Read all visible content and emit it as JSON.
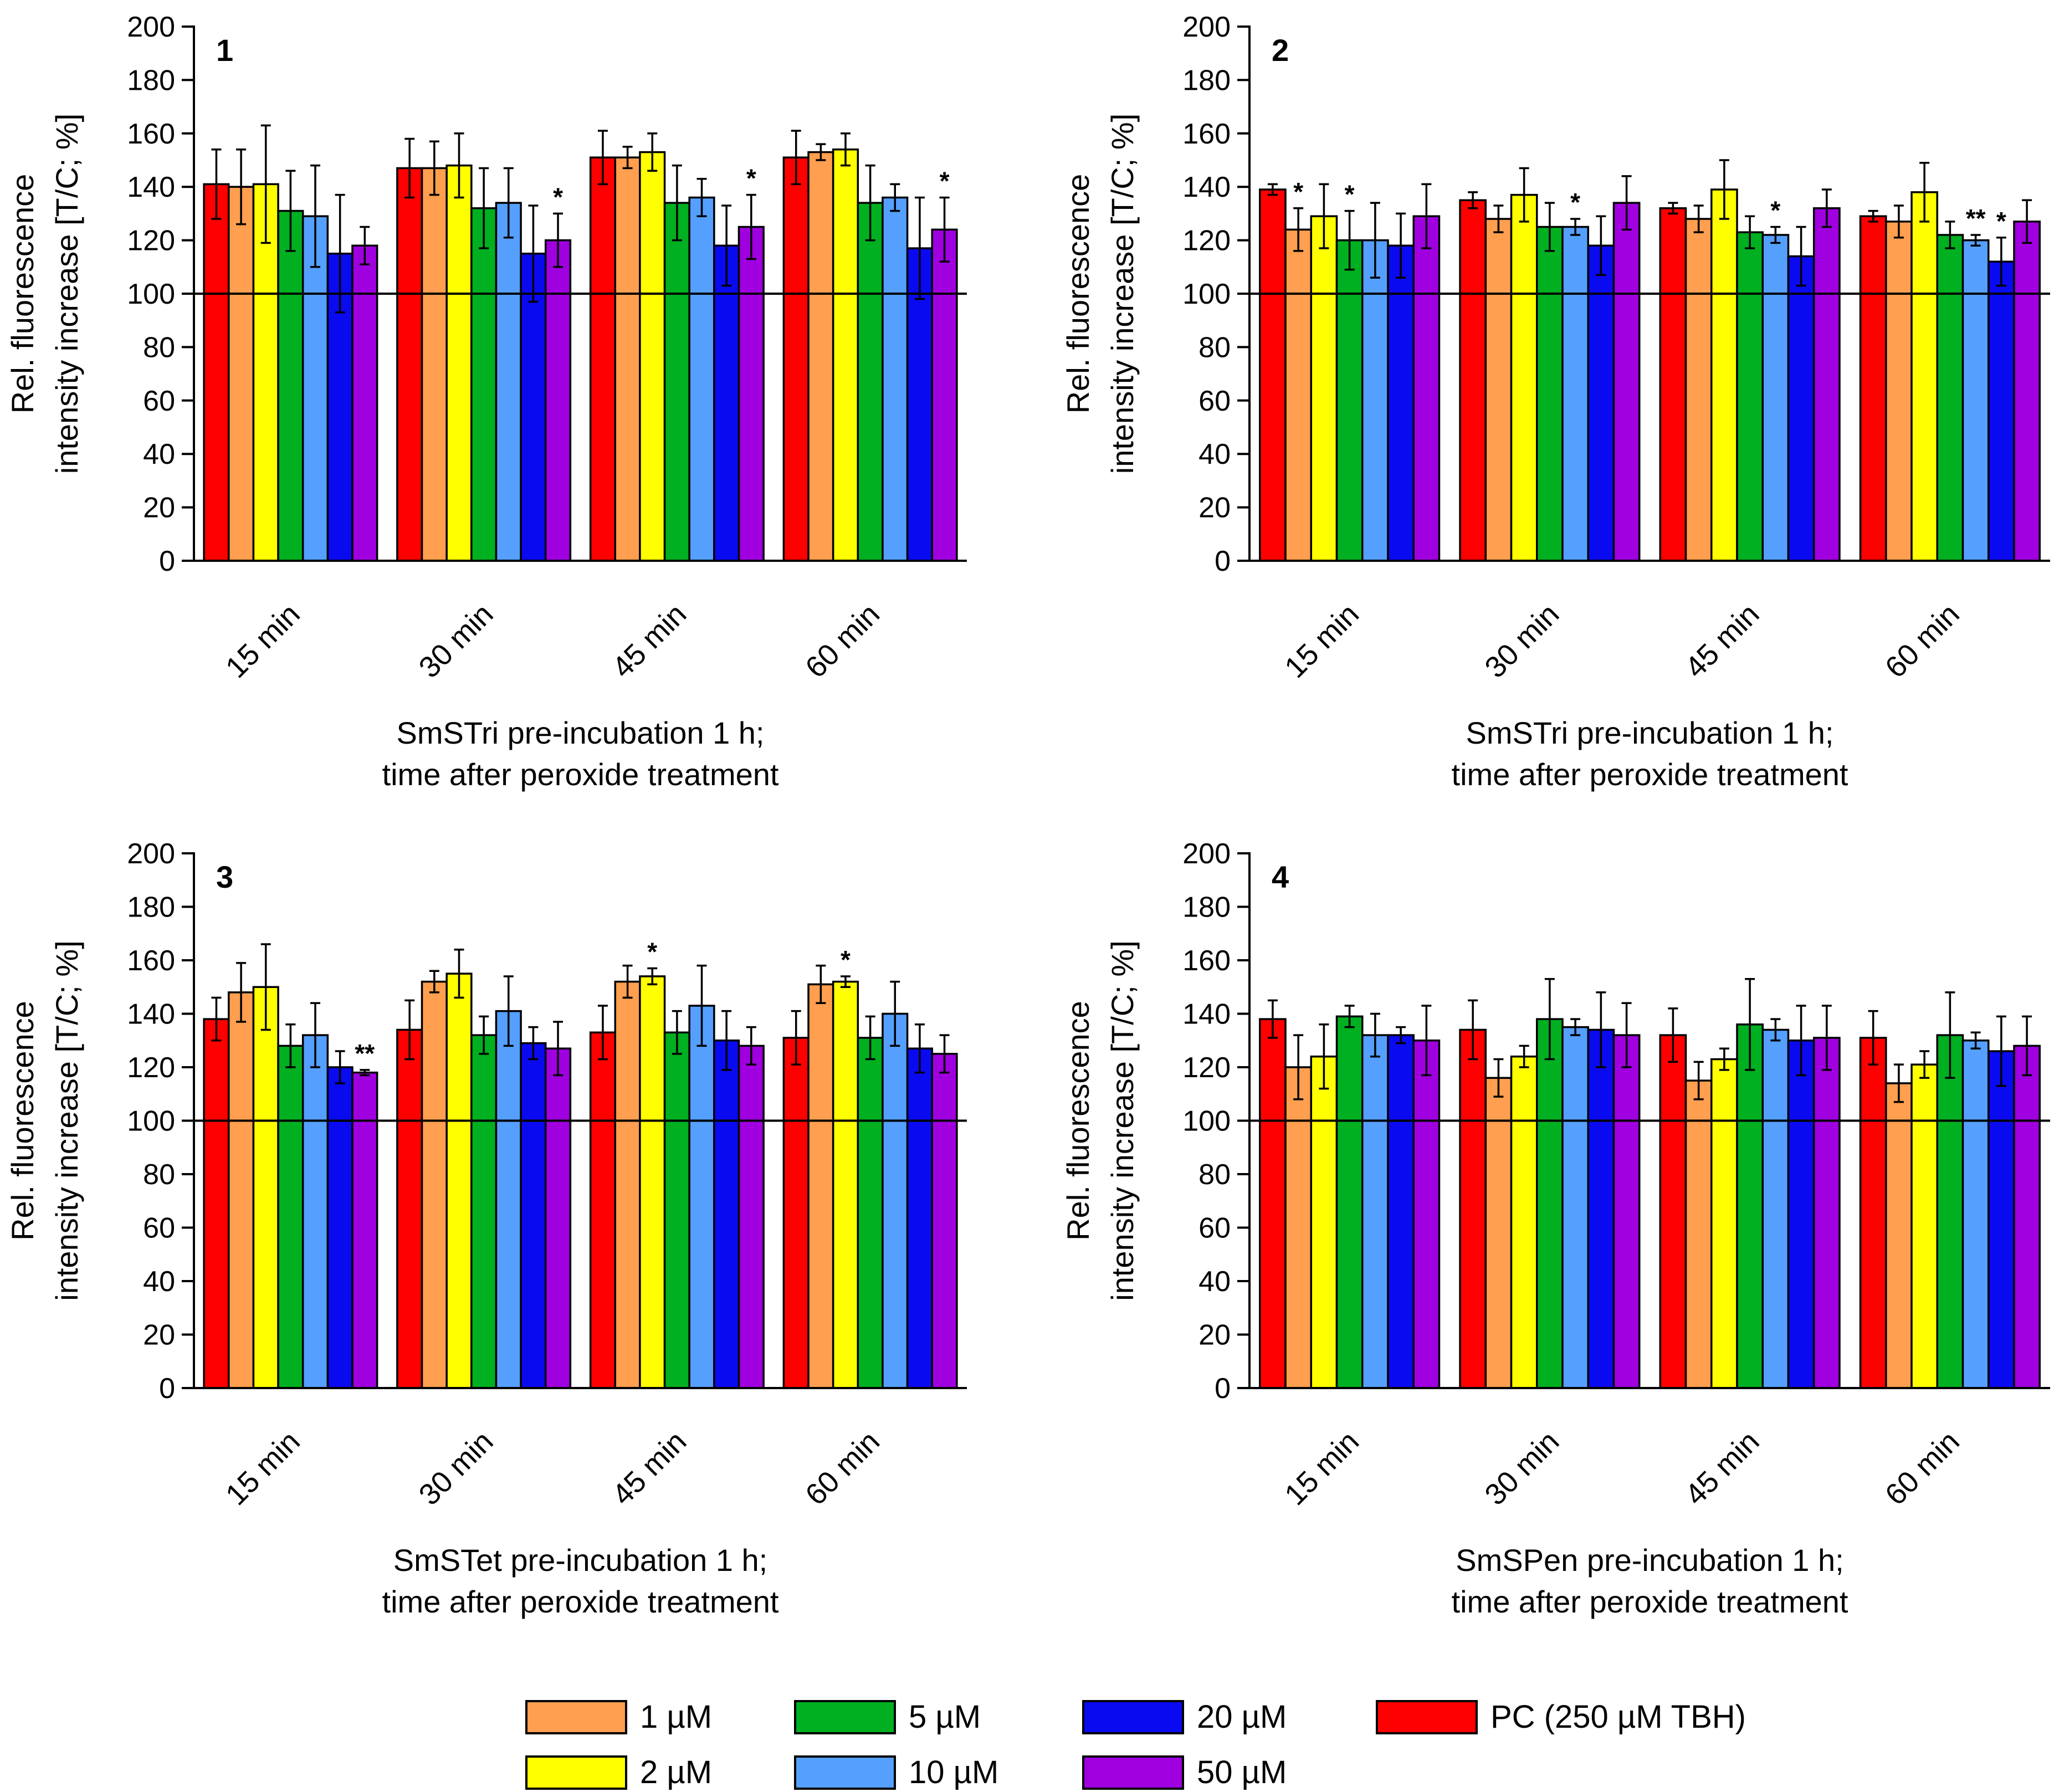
{
  "figure": {
    "categories": [
      "15 min",
      "30 min",
      "45 min",
      "60 min"
    ],
    "yaxis_label_line1": "Rel. fluorescence",
    "yaxis_label_line2": "intensity increase [T/C; %]",
    "reference_line": 100
  },
  "legend": {
    "items": [
      {
        "name": "1 µM",
        "color": "#FF9F4F"
      },
      {
        "name": "2 µM",
        "color": "#FFFF00"
      },
      {
        "name": "5 µM",
        "color": "#00B020"
      },
      {
        "name": "10 µM",
        "color": "#55A0FF"
      },
      {
        "name": "20 µM",
        "color": "#0A0AF0"
      },
      {
        "name": "50 µM",
        "color": "#A000E0"
      },
      {
        "name": "PC (250 µM TBH)",
        "color": "#FF0000"
      }
    ]
  },
  "chart_data": [
    {
      "type": "bar",
      "panel": "1",
      "xlabel_line1": "SmSTri pre-incubation 1 h;",
      "xlabel_line2": "time after peroxide treatment",
      "ylabel": "Rel. fluorescence intensity increase [T/C; %]",
      "ylim": [
        0,
        200
      ],
      "yticks": [
        0,
        20,
        40,
        60,
        80,
        100,
        120,
        140,
        160,
        180,
        200
      ],
      "categories": [
        "15 min",
        "30 min",
        "45 min",
        "60 min"
      ],
      "series": [
        {
          "name": "PC (250 µM TBH)",
          "color": "#FF0000",
          "values": [
            141,
            147,
            151,
            151
          ],
          "errors": [
            13,
            11,
            10,
            10
          ],
          "annotations": [
            "",
            "",
            "",
            ""
          ]
        },
        {
          "name": "1 µM",
          "color": "#FF9F4F",
          "values": [
            140,
            147,
            151,
            153
          ],
          "errors": [
            14,
            10,
            4,
            3
          ],
          "annotations": [
            "",
            "",
            "",
            ""
          ]
        },
        {
          "name": "2 µM",
          "color": "#FFFF00",
          "values": [
            141,
            148,
            153,
            154
          ],
          "errors": [
            22,
            12,
            7,
            6
          ],
          "annotations": [
            "",
            "",
            "",
            ""
          ]
        },
        {
          "name": "5 µM",
          "color": "#00B020",
          "values": [
            131,
            132,
            134,
            134
          ],
          "errors": [
            15,
            15,
            14,
            14
          ],
          "annotations": [
            "",
            "",
            "",
            ""
          ]
        },
        {
          "name": "10 µM",
          "color": "#55A0FF",
          "values": [
            129,
            134,
            136,
            136
          ],
          "errors": [
            19,
            13,
            7,
            5
          ],
          "annotations": [
            "",
            "",
            "",
            ""
          ]
        },
        {
          "name": "20 µM",
          "color": "#0A0AF0",
          "values": [
            115,
            115,
            118,
            117
          ],
          "errors": [
            22,
            18,
            15,
            19
          ],
          "annotations": [
            "",
            "",
            "",
            ""
          ]
        },
        {
          "name": "50 µM",
          "color": "#A000E0",
          "values": [
            118,
            120,
            125,
            124
          ],
          "errors": [
            7,
            10,
            12,
            12
          ],
          "annotations": [
            "",
            "*",
            "*",
            "*"
          ]
        }
      ]
    },
    {
      "type": "bar",
      "panel": "2",
      "xlabel_line1": "SmSTri pre-incubation 1 h;",
      "xlabel_line2": "time after peroxide treatment",
      "ylabel": "Rel. fluorescence intensity increase [T/C; %]",
      "ylim": [
        0,
        200
      ],
      "yticks": [
        0,
        20,
        40,
        60,
        80,
        100,
        120,
        140,
        160,
        180,
        200
      ],
      "categories": [
        "15 min",
        "30 min",
        "45 min",
        "60 min"
      ],
      "series": [
        {
          "name": "PC (250 µM TBH)",
          "color": "#FF0000",
          "values": [
            139,
            135,
            132,
            129
          ],
          "errors": [
            2,
            3,
            2,
            2
          ],
          "annotations": [
            "",
            "",
            "",
            ""
          ]
        },
        {
          "name": "1 µM",
          "color": "#FF9F4F",
          "values": [
            124,
            128,
            128,
            127
          ],
          "errors": [
            8,
            5,
            5,
            6
          ],
          "annotations": [
            "*",
            "",
            "",
            ""
          ]
        },
        {
          "name": "2 µM",
          "color": "#FFFF00",
          "values": [
            129,
            137,
            139,
            138
          ],
          "errors": [
            12,
            10,
            11,
            11
          ],
          "annotations": [
            "",
            "",
            "",
            ""
          ]
        },
        {
          "name": "5 µM",
          "color": "#00B020",
          "values": [
            120,
            125,
            123,
            122
          ],
          "errors": [
            11,
            9,
            6,
            5
          ],
          "annotations": [
            "*",
            "",
            "",
            ""
          ]
        },
        {
          "name": "10 µM",
          "color": "#55A0FF",
          "values": [
            120,
            125,
            122,
            120
          ],
          "errors": [
            14,
            3,
            3,
            2
          ],
          "annotations": [
            "",
            "*",
            "*",
            "**"
          ]
        },
        {
          "name": "20 µM",
          "color": "#0A0AF0",
          "values": [
            118,
            118,
            114,
            112
          ],
          "errors": [
            12,
            11,
            11,
            9
          ],
          "annotations": [
            "",
            "",
            "",
            "*"
          ]
        },
        {
          "name": "50 µM",
          "color": "#A000E0",
          "values": [
            129,
            134,
            132,
            127
          ],
          "errors": [
            12,
            10,
            7,
            8
          ],
          "annotations": [
            "",
            "",
            "",
            ""
          ]
        }
      ]
    },
    {
      "type": "bar",
      "panel": "3",
      "xlabel_line1": "SmSTet pre-incubation 1 h;",
      "xlabel_line2": "time after peroxide treatment",
      "ylabel": "Rel. fluorescence intensity increase [T/C; %]",
      "ylim": [
        0,
        200
      ],
      "yticks": [
        0,
        20,
        40,
        60,
        80,
        100,
        120,
        140,
        160,
        180,
        200
      ],
      "categories": [
        "15 min",
        "30 min",
        "45 min",
        "60 min"
      ],
      "series": [
        {
          "name": "PC (250 µM TBH)",
          "color": "#FF0000",
          "values": [
            138,
            134,
            133,
            131
          ],
          "errors": [
            8,
            11,
            10,
            10
          ],
          "annotations": [
            "",
            "",
            "",
            ""
          ]
        },
        {
          "name": "1 µM",
          "color": "#FF9F4F",
          "values": [
            148,
            152,
            152,
            151
          ],
          "errors": [
            11,
            4,
            6,
            7
          ],
          "annotations": [
            "",
            "",
            "",
            ""
          ]
        },
        {
          "name": "2 µM",
          "color": "#FFFF00",
          "values": [
            150,
            155,
            154,
            152
          ],
          "errors": [
            16,
            9,
            3,
            2
          ],
          "annotations": [
            "",
            "",
            "*",
            "*"
          ]
        },
        {
          "name": "5 µM",
          "color": "#00B020",
          "values": [
            128,
            132,
            133,
            131
          ],
          "errors": [
            8,
            7,
            8,
            8
          ],
          "annotations": [
            "",
            "",
            "",
            ""
          ]
        },
        {
          "name": "10 µM",
          "color": "#55A0FF",
          "values": [
            132,
            141,
            143,
            140
          ],
          "errors": [
            12,
            13,
            15,
            12
          ],
          "annotations": [
            "",
            "",
            "",
            ""
          ]
        },
        {
          "name": "20 µM",
          "color": "#0A0AF0",
          "values": [
            120,
            129,
            130,
            127
          ],
          "errors": [
            6,
            6,
            11,
            9
          ],
          "annotations": [
            "",
            "",
            "",
            ""
          ]
        },
        {
          "name": "50 µM",
          "color": "#A000E0",
          "values": [
            118,
            127,
            128,
            125
          ],
          "errors": [
            1,
            10,
            7,
            7
          ],
          "annotations": [
            "**",
            "",
            "",
            ""
          ]
        }
      ]
    },
    {
      "type": "bar",
      "panel": "4",
      "xlabel_line1": "SmSPen pre-incubation 1 h;",
      "xlabel_line2": "time after peroxide treatment",
      "ylabel": "Rel. fluorescence intensity increase [T/C; %]",
      "ylim": [
        0,
        200
      ],
      "yticks": [
        0,
        20,
        40,
        60,
        80,
        100,
        120,
        140,
        160,
        180,
        200
      ],
      "categories": [
        "15 min",
        "30 min",
        "45 min",
        "60 min"
      ],
      "series": [
        {
          "name": "PC (250 µM TBH)",
          "color": "#FF0000",
          "values": [
            138,
            134,
            132,
            131
          ],
          "errors": [
            7,
            11,
            10,
            10
          ],
          "annotations": [
            "",
            "",
            "",
            ""
          ]
        },
        {
          "name": "1 µM",
          "color": "#FF9F4F",
          "values": [
            120,
            116,
            115,
            114
          ],
          "errors": [
            12,
            7,
            7,
            7
          ],
          "annotations": [
            "",
            "",
            "",
            ""
          ]
        },
        {
          "name": "2 µM",
          "color": "#FFFF00",
          "values": [
            124,
            124,
            123,
            121
          ],
          "errors": [
            12,
            4,
            4,
            5
          ],
          "annotations": [
            "",
            "",
            "",
            ""
          ]
        },
        {
          "name": "5 µM",
          "color": "#00B020",
          "values": [
            139,
            138,
            136,
            132
          ],
          "errors": [
            4,
            15,
            17,
            16
          ],
          "annotations": [
            "",
            "",
            "",
            ""
          ]
        },
        {
          "name": "10 µM",
          "color": "#55A0FF",
          "values": [
            132,
            135,
            134,
            130
          ],
          "errors": [
            8,
            3,
            4,
            3
          ],
          "annotations": [
            "",
            "",
            "",
            ""
          ]
        },
        {
          "name": "20 µM",
          "color": "#0A0AF0",
          "values": [
            132,
            134,
            130,
            126
          ],
          "errors": [
            3,
            14,
            13,
            13
          ],
          "annotations": [
            "",
            "",
            "",
            ""
          ]
        },
        {
          "name": "50 µM",
          "color": "#A000E0",
          "values": [
            130,
            132,
            131,
            128
          ],
          "errors": [
            13,
            12,
            12,
            11
          ],
          "annotations": [
            "",
            "",
            "",
            ""
          ]
        }
      ]
    }
  ]
}
